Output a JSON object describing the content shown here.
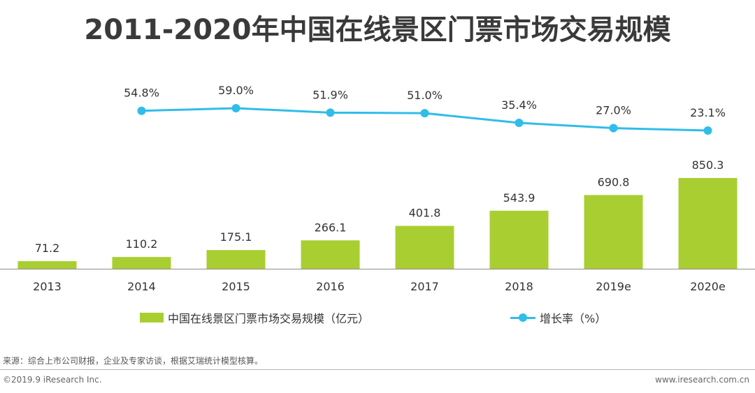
{
  "colors": {
    "bar": "#a9ce32",
    "line": "#30bde8",
    "title": "#3a3a3a",
    "text": "#333333",
    "axis": "#555555"
  },
  "chart_data": {
    "type": "bar+line",
    "title": "2011-2020年中国在线景区门票市场交易规模",
    "categories": [
      "2013",
      "2014",
      "2015",
      "2016",
      "2017",
      "2018",
      "2019e",
      "2020e"
    ],
    "series": [
      {
        "name": "中国在线景区门票市场交易规模（亿元）",
        "type": "bar",
        "values": [
          71.2,
          110.2,
          175.1,
          266.1,
          401.8,
          543.9,
          690.8,
          850.3
        ],
        "labels": [
          "71.2",
          "110.2",
          "175.1",
          "266.1",
          "401.8",
          "543.9",
          "690.8",
          "850.3"
        ]
      },
      {
        "name": "增长率（%）",
        "type": "line",
        "values": [
          null,
          54.8,
          59.0,
          51.9,
          51.0,
          35.4,
          27.0,
          23.1
        ],
        "labels": [
          "",
          "54.8%",
          "59.0%",
          "51.9%",
          "51.0%",
          "35.4%",
          "27.0%",
          "23.1%"
        ]
      }
    ],
    "legend_position": "bottom"
  },
  "legend": {
    "bar_label": "中国在线景区门票市场交易规模（亿元）",
    "line_label": "增长率（%）"
  },
  "footer": {
    "source": "来源：综合上市公司财报，企业及专家访谈，根据艾瑞统计模型核算。",
    "copyright": "©2019.9 iResearch Inc.",
    "website": "www.iresearch.com.cn"
  }
}
